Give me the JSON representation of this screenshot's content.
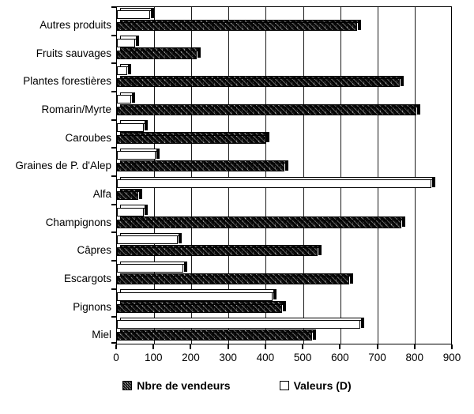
{
  "chart_data": {
    "type": "bar",
    "orientation": "horizontal",
    "title": "",
    "xlabel": "",
    "ylabel": "",
    "xlim": [
      0,
      900
    ],
    "xticks": [
      0,
      100,
      200,
      300,
      400,
      500,
      600,
      700,
      800,
      900
    ],
    "grid": true,
    "categories": [
      "Autres produits",
      "Fruits sauvages",
      "Plantes forestières",
      "Romarin/Myrte",
      "Caroubes",
      "Graines de P. d'Alep",
      "Alfa",
      "Champignons",
      "Câpres",
      "Escargots",
      "Pignons",
      "Miel"
    ],
    "series": [
      {
        "name": "Valeurs (D)",
        "style": "white",
        "row_position": "top",
        "values": [
          90,
          50,
          30,
          40,
          75,
          105,
          845,
          75,
          165,
          180,
          420,
          655
        ]
      },
      {
        "name": "Nbre de vendeurs",
        "style": "textured",
        "row_position": "bottom",
        "values": [
          645,
          215,
          760,
          805,
          400,
          450,
          60,
          765,
          540,
          625,
          445,
          525
        ]
      }
    ],
    "legend_position": "bottom"
  },
  "legend": {
    "items": [
      {
        "label": "Nbre de vendeurs",
        "style": "textured"
      },
      {
        "label": "Valeurs (D)",
        "style": "white"
      }
    ]
  },
  "colors": {
    "ink": "#000000",
    "background": "#ffffff",
    "bar_white_fill": "#ffffff",
    "bar_texture_dark": "#2b2b2b"
  }
}
